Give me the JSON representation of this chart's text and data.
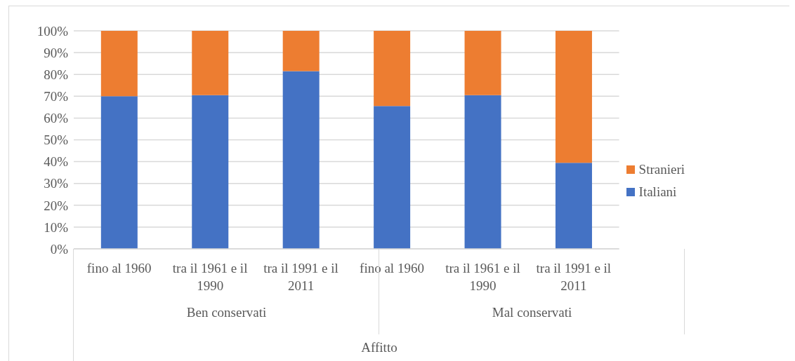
{
  "chart_data": {
    "type": "bar",
    "stacked": true,
    "categories": [
      "fino al 1960",
      "tra il 1961 e il 1990",
      "tra il 1991 e il 2011",
      "fino al 1960",
      "tra il 1961 e il 1990",
      "tra il 1991 e il 2011"
    ],
    "series": [
      {
        "name": "Italiani",
        "color": "#4472c4",
        "values": [
          70,
          70.5,
          81.5,
          65.5,
          70.5,
          39.5
        ]
      },
      {
        "name": "Stranieri",
        "color": "#ed7d31",
        "values": [
          30,
          29.5,
          18.5,
          34.5,
          29.5,
          60.5
        ]
      }
    ],
    "ylim": [
      0,
      100
    ],
    "yticks": [
      {
        "value": 0,
        "label": "0%"
      },
      {
        "value": 10,
        "label": "10%"
      },
      {
        "value": 20,
        "label": "20%"
      },
      {
        "value": 30,
        "label": "30%"
      },
      {
        "value": 40,
        "label": "40%"
      },
      {
        "value": 50,
        "label": "50%"
      },
      {
        "value": 60,
        "label": "60%"
      },
      {
        "value": 70,
        "label": "70%"
      },
      {
        "value": 80,
        "label": "80%"
      },
      {
        "value": 90,
        "label": "90%"
      },
      {
        "value": 100,
        "label": "100%"
      }
    ],
    "grid": "y",
    "legend": "right",
    "xlabel": "Affitto",
    "annotations": [
      "Ben conservati",
      "Mal conservati"
    ]
  }
}
